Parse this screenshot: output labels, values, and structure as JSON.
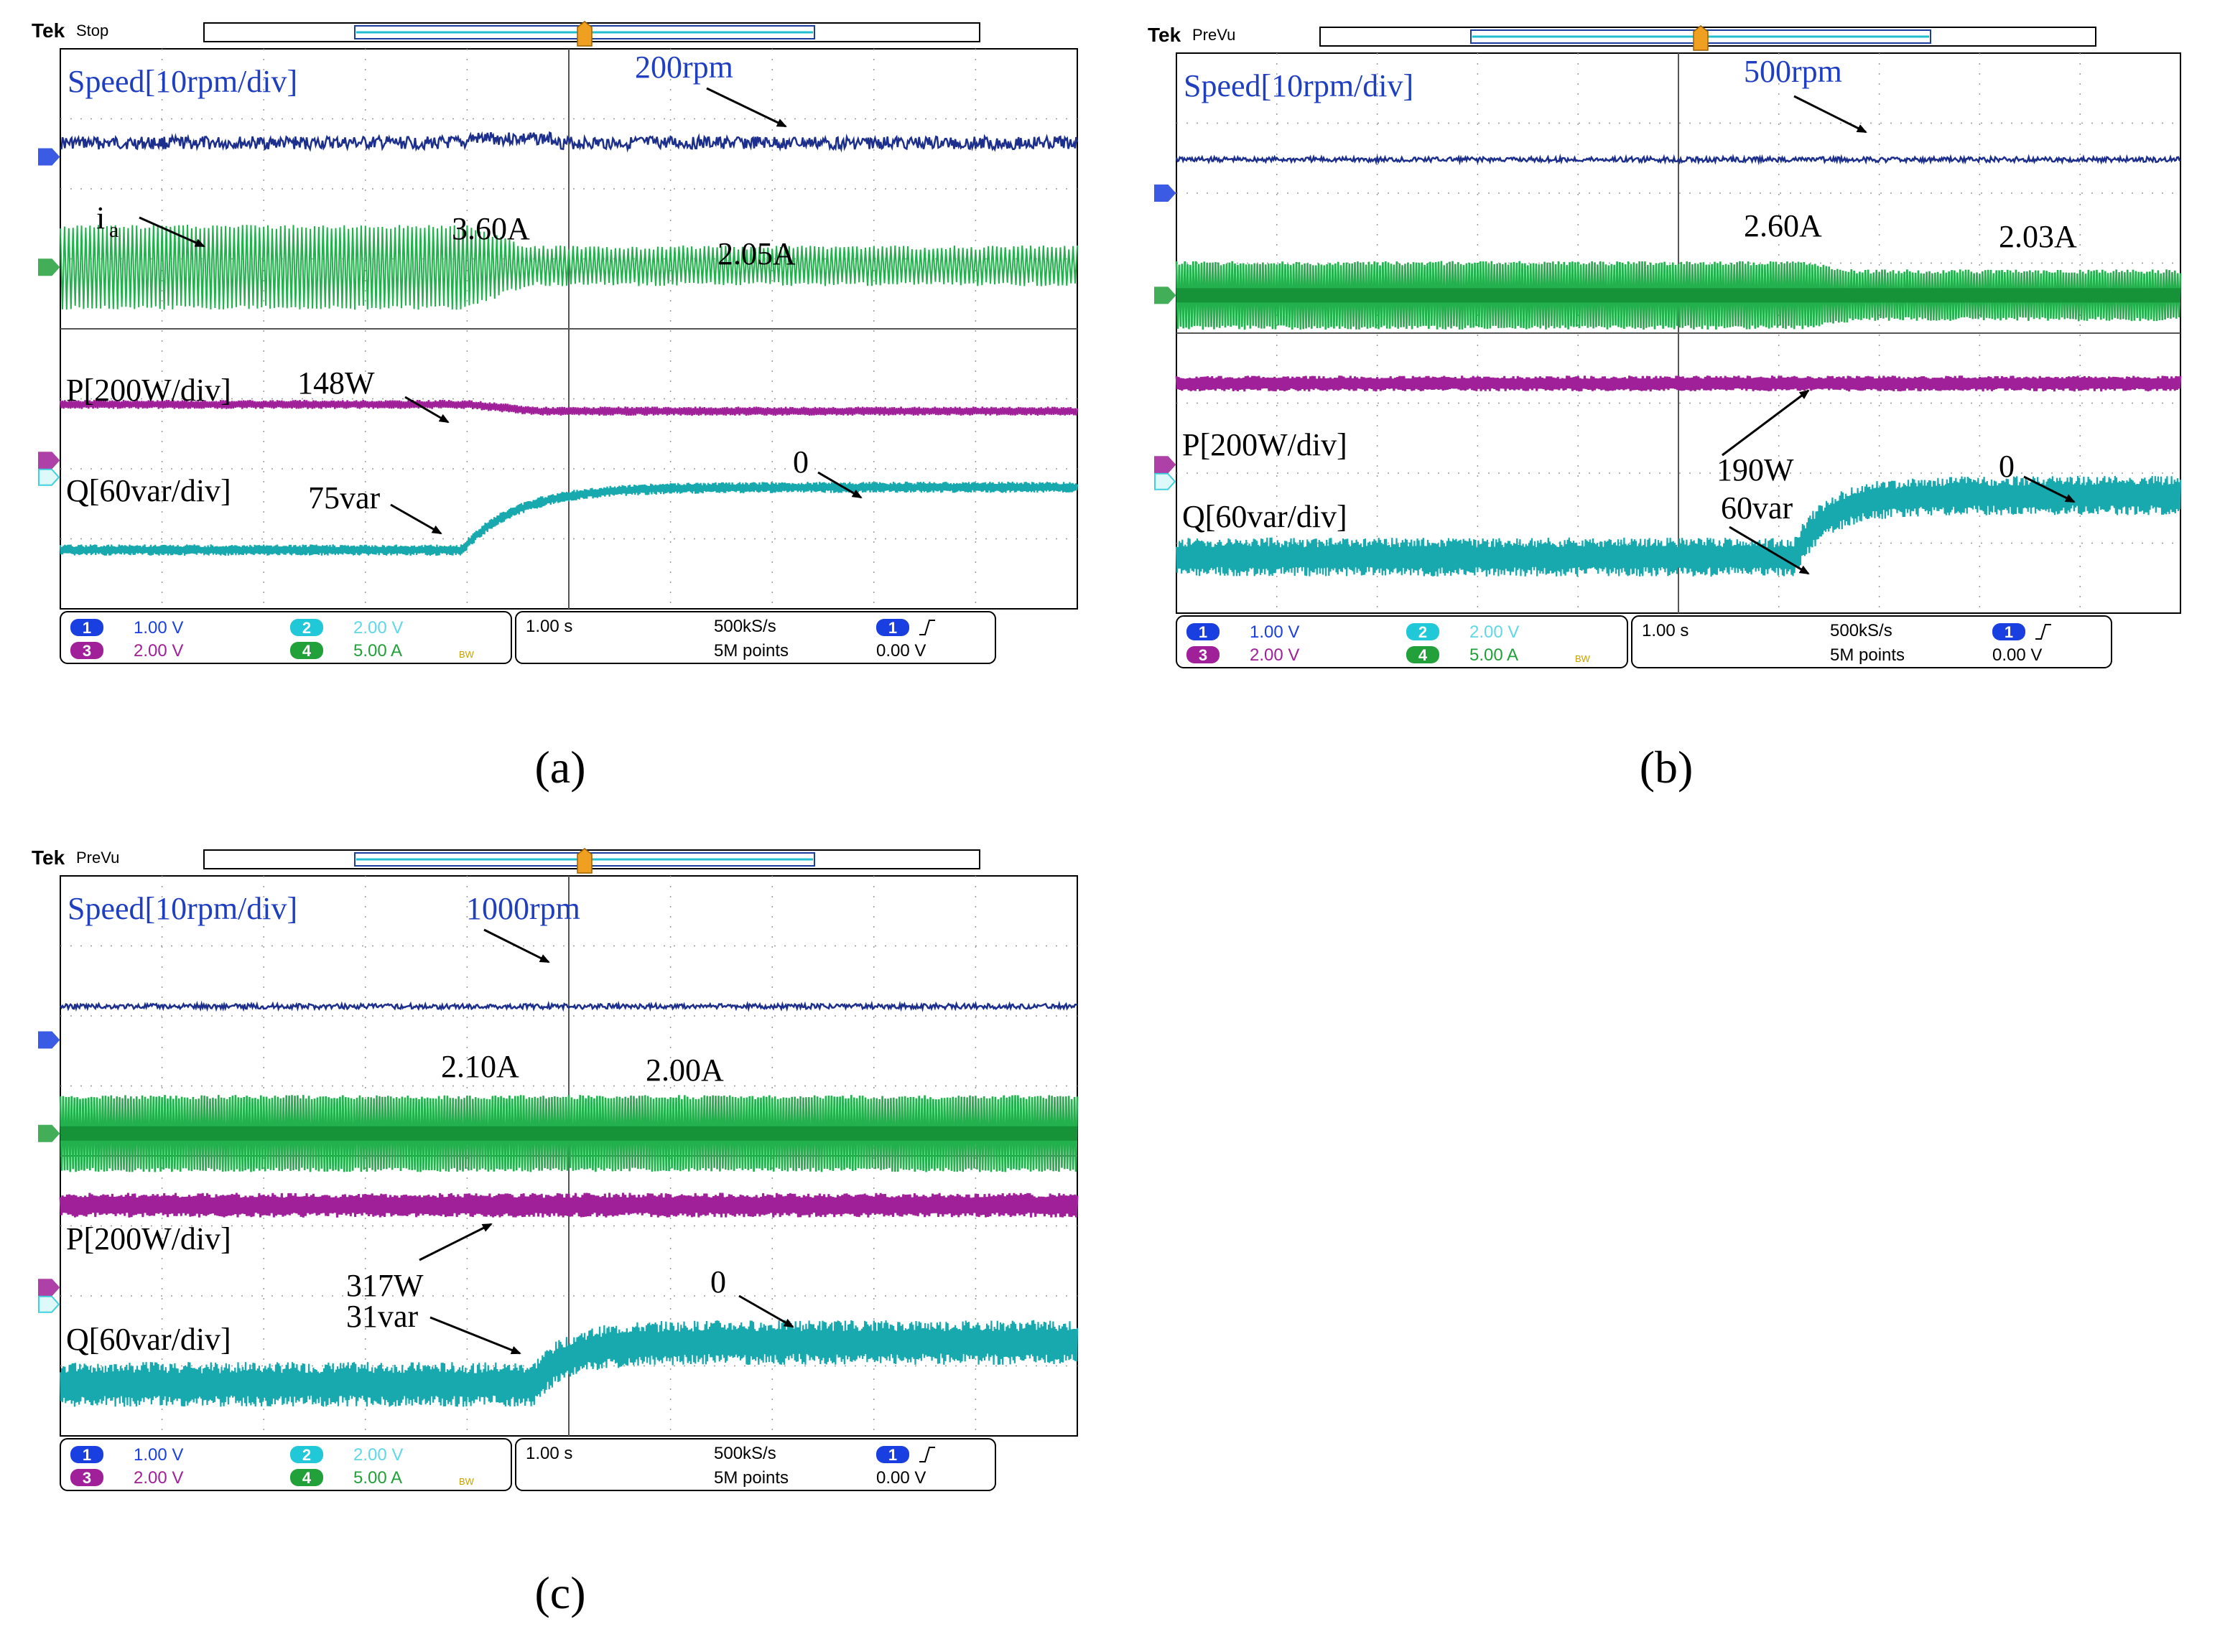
{
  "colors": {
    "speed": "#1c2f8c",
    "current": "#22b14c",
    "current_dark": "#0c7a2a",
    "p": "#a0209a",
    "q": "#17a9ad",
    "annot_blue": "#1f3fc0",
    "grid": "#9a9a9a",
    "ch1": "#1a3fe0",
    "ch2": "#20c8d8",
    "ch3": "#a0209a",
    "ch4": "#22a03a"
  },
  "chart_data": [
    {
      "type": "line",
      "id": "a",
      "caption": "(a)",
      "header": {
        "brand": "Tek",
        "mode": "Stop"
      },
      "x_range_s": [
        0,
        10
      ],
      "x_divisions": 10,
      "y_divisions": 8,
      "grid": true,
      "series": [
        {
          "name": "Speed",
          "label": "Speed[10rpm/div]",
          "scale": "10rpm/div",
          "before": 200,
          "after": 200,
          "unit": "rpm",
          "noise": 0.6
        },
        {
          "name": "ia",
          "label": "ia",
          "scale": "5.00 A/div",
          "before": 3.6,
          "after": 2.05,
          "unit": "A"
        },
        {
          "name": "P",
          "label": "P[200W/div]",
          "scale": "200W/div",
          "before": 148,
          "after": 148,
          "unit": "W"
        },
        {
          "name": "Q",
          "label": "Q[60var/div]",
          "scale": "60var/div",
          "before": 75,
          "after": 0,
          "unit": "var"
        }
      ],
      "step_time_s": 4.3,
      "annotations": [
        "200rpm",
        "3.60A",
        "2.05A",
        "148W",
        "75var",
        "0"
      ],
      "channels": {
        "ch1": {
          "num": "1",
          "value": "1.00 V"
        },
        "ch2": {
          "num": "2",
          "value": "2.00 V"
        },
        "ch3": {
          "num": "3",
          "value": "2.00 V"
        },
        "ch4": {
          "num": "4",
          "value": "5.00 A"
        },
        "bw": "BW"
      },
      "timebase": {
        "div": "1.00 s",
        "rate": "500kS/s",
        "points": "5M points",
        "trig_ch": "1",
        "trig_level": "0.00 V"
      }
    },
    {
      "type": "line",
      "id": "b",
      "caption": "(b)",
      "header": {
        "brand": "Tek",
        "mode": "PreVu"
      },
      "x_range_s": [
        0,
        10
      ],
      "x_divisions": 10,
      "y_divisions": 8,
      "grid": true,
      "series": [
        {
          "name": "Speed",
          "label": "Speed[10rpm/div]",
          "scale": "10rpm/div",
          "before": 500,
          "after": 500,
          "unit": "rpm"
        },
        {
          "name": "ia",
          "label": "",
          "scale": "5.00 A/div",
          "before": 2.6,
          "after": 2.03,
          "unit": "A"
        },
        {
          "name": "P",
          "label": "P[200W/div]",
          "scale": "200W/div",
          "before": 190,
          "after": 190,
          "unit": "W"
        },
        {
          "name": "Q",
          "label": "Q[60var/div]",
          "scale": "60var/div",
          "before": 60,
          "after": 0,
          "unit": "var"
        }
      ],
      "step_time_s": 6.5,
      "annotations": [
        "500rpm",
        "2.60A",
        "2.03A",
        "190W",
        "60var",
        "0"
      ],
      "channels": {
        "ch1": {
          "num": "1",
          "value": "1.00 V"
        },
        "ch2": {
          "num": "2",
          "value": "2.00 V"
        },
        "ch3": {
          "num": "3",
          "value": "2.00 V"
        },
        "ch4": {
          "num": "4",
          "value": "5.00 A"
        },
        "bw": "BW"
      },
      "timebase": {
        "div": "1.00 s",
        "rate": "500kS/s",
        "points": "5M points",
        "trig_ch": "1",
        "trig_level": "0.00 V"
      }
    },
    {
      "type": "line",
      "id": "c",
      "caption": "(c)",
      "header": {
        "brand": "Tek",
        "mode": "PreVu"
      },
      "x_range_s": [
        0,
        10
      ],
      "x_divisions": 10,
      "y_divisions": 8,
      "grid": true,
      "series": [
        {
          "name": "Speed",
          "label": "Speed[10rpm/div]",
          "scale": "10rpm/div",
          "before": 1000,
          "after": 1000,
          "unit": "rpm"
        },
        {
          "name": "ia",
          "label": "",
          "scale": "5.00 A/div",
          "before": 2.1,
          "after": 2.0,
          "unit": "A"
        },
        {
          "name": "P",
          "label": "P[200W/div]",
          "scale": "200W/div",
          "before": 317,
          "after": 317,
          "unit": "W"
        },
        {
          "name": "Q",
          "label": "Q[60var/div]",
          "scale": "60var/div",
          "before": 31,
          "after": 0,
          "unit": "var"
        }
      ],
      "step_time_s": 5.0,
      "annotations": [
        "1000rpm",
        "2.10A",
        "2.00A",
        "317W",
        "31var",
        "0"
      ],
      "channels": {
        "ch1": {
          "num": "1",
          "value": "1.00 V"
        },
        "ch2": {
          "num": "2",
          "value": "2.00 V"
        },
        "ch3": {
          "num": "3",
          "value": "2.00 V"
        },
        "ch4": {
          "num": "4",
          "value": "5.00 A"
        },
        "bw": "BW"
      },
      "timebase": {
        "div": "1.00 s",
        "rate": "500kS/s",
        "points": "5M points",
        "trig_ch": "1",
        "trig_level": "0.00 V"
      }
    }
  ]
}
